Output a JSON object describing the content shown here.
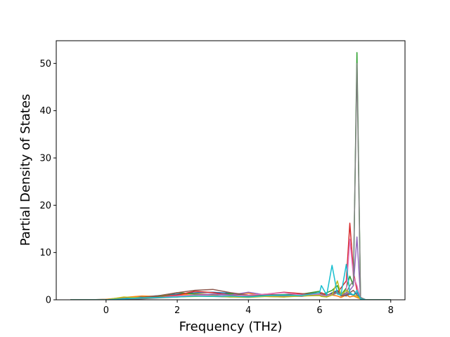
{
  "chart_data": {
    "type": "line",
    "x_label": "Frequency (THz)",
    "y_label": "Partial Density of States",
    "x": [
      -1,
      -0.5,
      0,
      0.5,
      1,
      1.5,
      2,
      2.5,
      3,
      3.5,
      4,
      4.5,
      5,
      5.5,
      6,
      6.05,
      6.2,
      6.35,
      6.5,
      6.6,
      6.75,
      6.85,
      6.95,
      7.05,
      7.15,
      7.3,
      7.5,
      8
    ],
    "series": [
      {
        "color": "#1f77b4",
        "values": [
          0,
          0,
          0.1,
          0.3,
          0.6,
          0.9,
          1.2,
          1.5,
          1.6,
          1.4,
          1.0,
          0.9,
          0.8,
          0.9,
          1.0,
          1.2,
          0.8,
          1.5,
          2.0,
          1.0,
          0.8,
          1.2,
          1.0,
          1.5,
          0.3,
          0,
          0,
          0
        ]
      },
      {
        "color": "#ff7f0e",
        "values": [
          0,
          0,
          0.1,
          0.5,
          0.8,
          0.7,
          1.0,
          1.3,
          1.1,
          1.2,
          1.4,
          0.7,
          0.6,
          1.0,
          1.2,
          0.8,
          0.6,
          1.0,
          0.8,
          0.5,
          1.0,
          0.6,
          0.8,
          0.5,
          0.2,
          0,
          0,
          0
        ]
      },
      {
        "color": "#2ca02c",
        "values": [
          0,
          0,
          0,
          0.2,
          0.5,
          0.8,
          1.5,
          1.2,
          1.0,
          1.3,
          0.8,
          1.0,
          1.1,
          1.2,
          1.8,
          1.0,
          1.5,
          2.0,
          3.0,
          1.0,
          2.5,
          5.0,
          3.0,
          52.3,
          0.5,
          0,
          0,
          0
        ]
      },
      {
        "color": "#d62728",
        "values": [
          0,
          0,
          0,
          0.1,
          0.4,
          0.6,
          1.0,
          1.8,
          1.5,
          1.0,
          0.9,
          1.2,
          1.6,
          1.3,
          1.0,
          1.5,
          1.0,
          1.2,
          1.5,
          2.5,
          4.0,
          16.2,
          6.0,
          2.0,
          0.3,
          0,
          0,
          0
        ]
      },
      {
        "color": "#9467bd",
        "values": [
          0,
          0,
          0,
          0.1,
          0.3,
          0.5,
          0.8,
          1.0,
          1.2,
          1.0,
          1.6,
          1.0,
          0.8,
          0.7,
          1.2,
          1.0,
          0.8,
          1.0,
          1.5,
          1.0,
          1.2,
          2.0,
          3.0,
          13.3,
          0.5,
          0,
          0,
          0
        ]
      },
      {
        "color": "#8c564b",
        "values": [
          0,
          0,
          0,
          0.2,
          0.5,
          0.9,
          1.5,
          2.0,
          2.2,
          1.5,
          1.0,
          1.1,
          1.0,
          1.2,
          1.5,
          1.0,
          1.0,
          1.3,
          1.8,
          0.8,
          1.0,
          1.5,
          2.0,
          1.0,
          0.2,
          0,
          0,
          0
        ]
      },
      {
        "color": "#e377c2",
        "values": [
          0,
          0,
          0,
          0.1,
          0.3,
          0.5,
          0.8,
          1.0,
          0.9,
          0.8,
          1.0,
          1.2,
          1.5,
          1.0,
          1.2,
          1.0,
          0.9,
          1.1,
          1.5,
          1.0,
          2.0,
          12.8,
          5.0,
          3.0,
          0.2,
          0,
          0,
          0
        ]
      },
      {
        "color": "#7f7f7f",
        "values": [
          0,
          0,
          0,
          0.1,
          0.2,
          0.4,
          0.6,
          0.8,
          0.7,
          0.6,
          0.8,
          0.7,
          0.9,
          0.8,
          1.0,
          0.8,
          0.7,
          1.0,
          1.5,
          1.0,
          1.5,
          3.0,
          4.0,
          50.0,
          0.5,
          0,
          0,
          0
        ]
      },
      {
        "color": "#bcbd22",
        "values": [
          0,
          0,
          0,
          0.6,
          0.4,
          0.5,
          0.6,
          0.7,
          0.8,
          0.6,
          0.5,
          0.7,
          0.6,
          0.8,
          0.9,
          0.7,
          0.6,
          1.0,
          4.0,
          1.0,
          2.0,
          1.5,
          1.0,
          0.8,
          0.2,
          0,
          0,
          0
        ]
      },
      {
        "color": "#17becf",
        "values": [
          0,
          0,
          0,
          0.2,
          0.4,
          0.5,
          0.6,
          0.8,
          0.7,
          0.8,
          0.6,
          0.9,
          1.0,
          0.9,
          1.5,
          3.0,
          1.0,
          7.3,
          1.2,
          1.0,
          7.5,
          1.5,
          1.0,
          2.0,
          0.2,
          0,
          0,
          0
        ]
      }
    ],
    "xlim": [
      -1.4,
      8.4
    ],
    "xticks": [
      0,
      2,
      4,
      6,
      8
    ],
    "ylim": [
      0,
      54.8
    ],
    "yticks": [
      0,
      10,
      20,
      30,
      40,
      50
    ],
    "grid": false
  }
}
